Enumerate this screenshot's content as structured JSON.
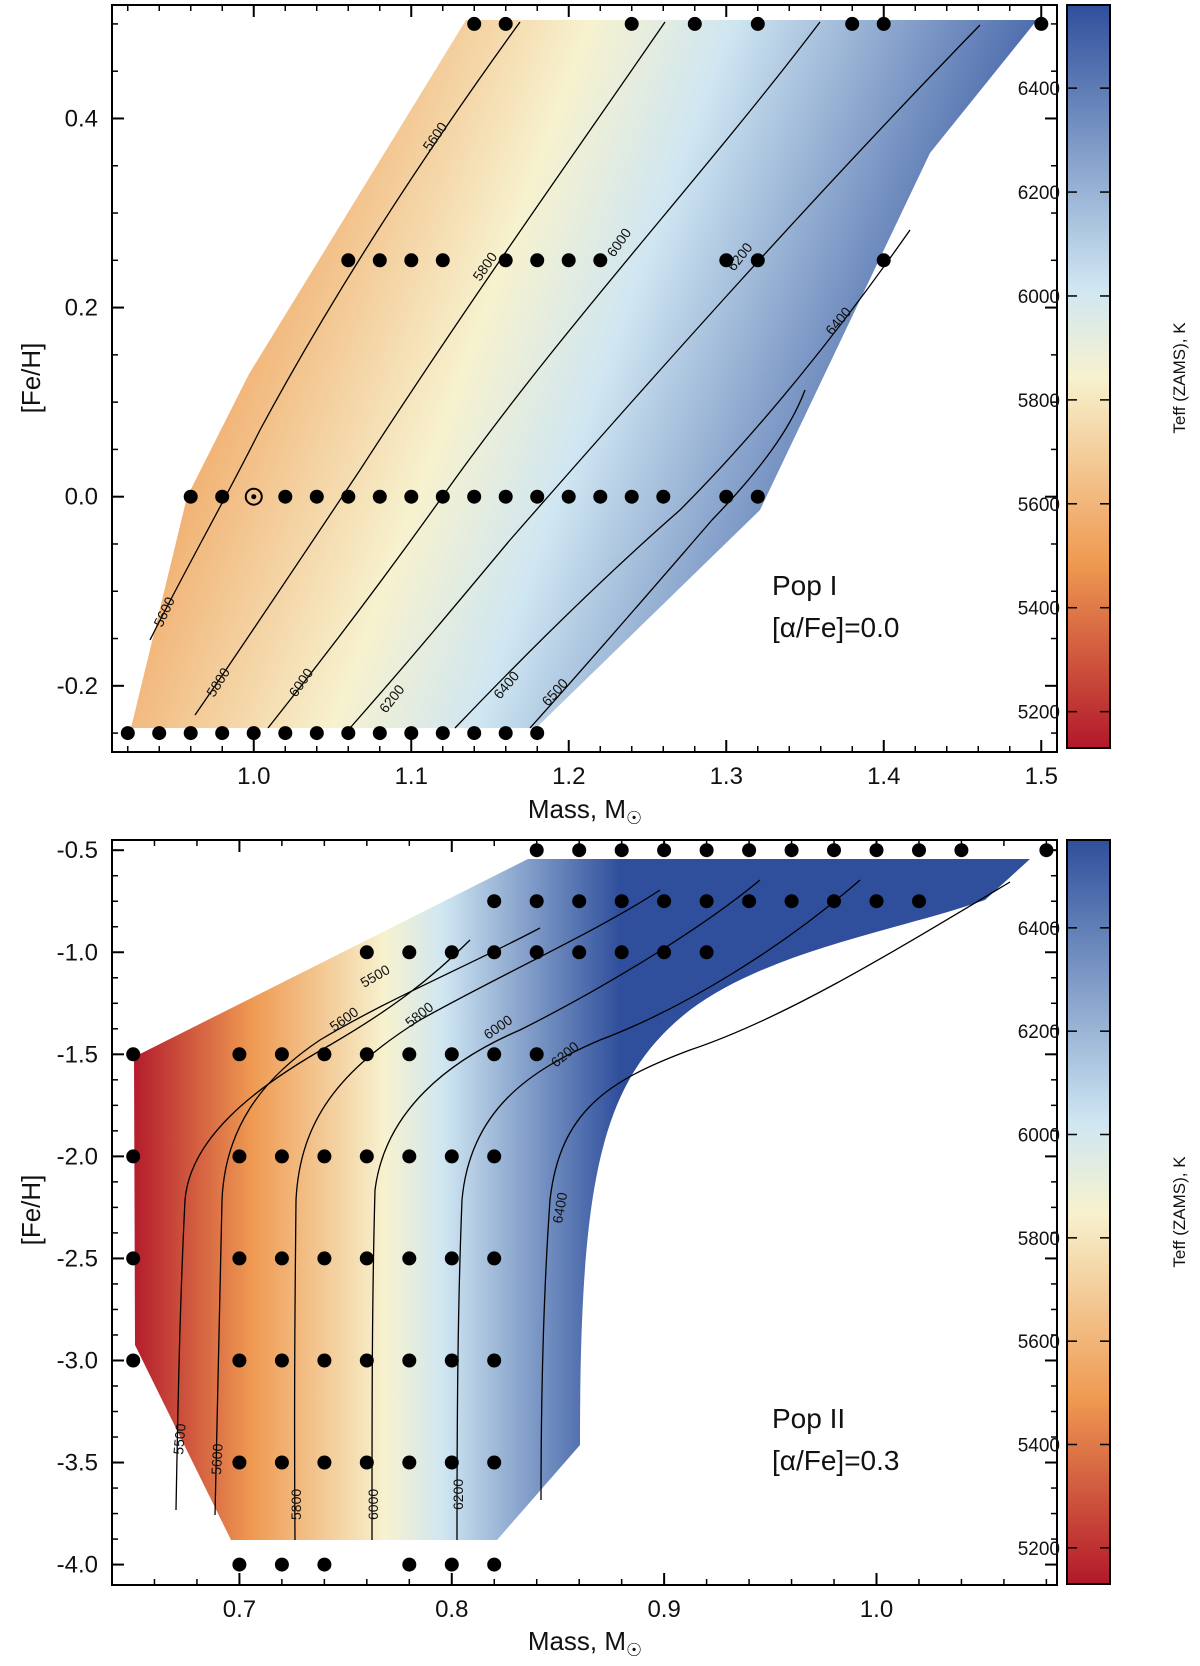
{
  "chart_data": [
    {
      "type": "scatter",
      "panel": "top",
      "xlabel": "Mass, M",
      "xlabel_symbol": "☉",
      "ylabel": "[Fe/H]",
      "xlim": [
        0.91,
        1.51
      ],
      "ylim": [
        -0.27,
        0.52
      ],
      "xticks": [
        1.0,
        1.1,
        1.2,
        1.3,
        1.4,
        1.5
      ],
      "xtick_labels": [
        "1.0",
        "1.1",
        "1.2",
        "1.3",
        "1.4",
        "1.5"
      ],
      "yticks": [
        0.4,
        0.2,
        0.0,
        -0.2
      ],
      "ytick_labels": [
        "0.4",
        "0.2",
        "0.0",
        "-0.2"
      ],
      "annotation": [
        "Pop I",
        "[α/Fe]=0.0"
      ],
      "colorbar": {
        "label": "Teff (ZAMS), K",
        "range": [
          5130,
          6560
        ],
        "ticks": [
          5200,
          5400,
          5600,
          5800,
          6000,
          6200,
          6400
        ],
        "tick_labels": [
          "5200",
          "5400",
          "5600",
          "5800",
          "6000",
          "6200",
          "6400"
        ]
      },
      "contour_labels": [
        "5600",
        "5800",
        "6000",
        "6200",
        "6400",
        "5600",
        "5800",
        "6000",
        "6200",
        "6400",
        "6500"
      ],
      "sun_marker": {
        "x": 1.0,
        "y": 0.0
      },
      "points": [
        {
          "feh": 0.5,
          "masses": [
            1.14,
            1.16,
            1.24,
            1.28,
            1.32,
            1.38,
            1.4,
            1.5
          ]
        },
        {
          "feh": 0.25,
          "masses": [
            1.06,
            1.08,
            1.1,
            1.12,
            1.16,
            1.18,
            1.2,
            1.22,
            1.3,
            1.32,
            1.4
          ]
        },
        {
          "feh": 0.0,
          "masses": [
            0.96,
            0.98,
            1.02,
            1.04,
            1.06,
            1.08,
            1.1,
            1.12,
            1.14,
            1.16,
            1.18,
            1.2,
            1.22,
            1.24,
            1.26,
            1.3,
            1.32
          ]
        },
        {
          "feh": -0.25,
          "masses": [
            0.92,
            0.94,
            0.96,
            0.98,
            1.0,
            1.02,
            1.04,
            1.06,
            1.08,
            1.1,
            1.12,
            1.14,
            1.16,
            1.18
          ]
        }
      ]
    },
    {
      "type": "scatter",
      "panel": "bottom",
      "xlabel": "Mass, M",
      "xlabel_symbol": "☉",
      "ylabel": "[Fe/H]",
      "xlim": [
        0.64,
        1.085
      ],
      "ylim": [
        -4.1,
        -0.45
      ],
      "xticks": [
        0.7,
        0.8,
        0.9,
        1.0
      ],
      "xtick_labels": [
        "0.7",
        "0.8",
        "0.9",
        "1.0"
      ],
      "yticks": [
        -0.5,
        -1.0,
        -1.5,
        -2.0,
        -2.5,
        -3.0,
        -3.5,
        -4.0
      ],
      "ytick_labels": [
        "-0.5",
        "-1.0",
        "-1.5",
        "-2.0",
        "-2.5",
        "-3.0",
        "-3.5",
        "-4.0"
      ],
      "annotation": [
        "Pop II",
        "[α/Fe]=0.3"
      ],
      "colorbar": {
        "label": "Teff (ZAMS), K",
        "range": [
          5130,
          6570
        ],
        "ticks": [
          5200,
          5400,
          5600,
          5800,
          6000,
          6200,
          6400
        ],
        "tick_labels": [
          "5200",
          "5400",
          "5600",
          "5800",
          "6000",
          "6200",
          "6400"
        ]
      },
      "contour_labels": [
        "5500",
        "5600",
        "5800",
        "6000",
        "6200",
        "6400",
        "5500",
        "5600",
        "5800",
        "6000",
        "6200"
      ],
      "points": [
        {
          "feh": -0.5,
          "masses": [
            0.84,
            0.86,
            0.88,
            0.9,
            0.92,
            0.94,
            0.96,
            0.98,
            1.0,
            1.02,
            1.04,
            1.08
          ]
        },
        {
          "feh": -0.75,
          "masses": [
            0.82,
            0.84,
            0.86,
            0.88,
            0.9,
            0.92,
            0.94,
            0.96,
            0.98,
            1.0,
            1.02
          ]
        },
        {
          "feh": -1.0,
          "masses": [
            0.76,
            0.78,
            0.8,
            0.82,
            0.84,
            0.86,
            0.88,
            0.9,
            0.92
          ]
        },
        {
          "feh": -1.5,
          "masses": [
            0.65,
            0.7,
            0.72,
            0.74,
            0.76,
            0.78,
            0.8,
            0.82,
            0.84
          ]
        },
        {
          "feh": -2.0,
          "masses": [
            0.65,
            0.7,
            0.72,
            0.74,
            0.76,
            0.78,
            0.8,
            0.82
          ]
        },
        {
          "feh": -2.5,
          "masses": [
            0.65,
            0.7,
            0.72,
            0.74,
            0.76,
            0.78,
            0.8,
            0.82
          ]
        },
        {
          "feh": -3.0,
          "masses": [
            0.65,
            0.7,
            0.72,
            0.74,
            0.76,
            0.78,
            0.8,
            0.82
          ]
        },
        {
          "feh": -3.5,
          "masses": [
            0.7,
            0.72,
            0.74,
            0.76,
            0.78,
            0.8,
            0.82
          ]
        },
        {
          "feh": -4.0,
          "masses": [
            0.7,
            0.72,
            0.74,
            0.78,
            0.8,
            0.82
          ]
        }
      ]
    }
  ],
  "colors": {
    "cool": "#b2182b",
    "warm": "#ef9a52",
    "neutral": "#f7f2cf",
    "light_blue": "#cfe6f2",
    "hot": "#2f4f9c",
    "point": "#000000"
  }
}
